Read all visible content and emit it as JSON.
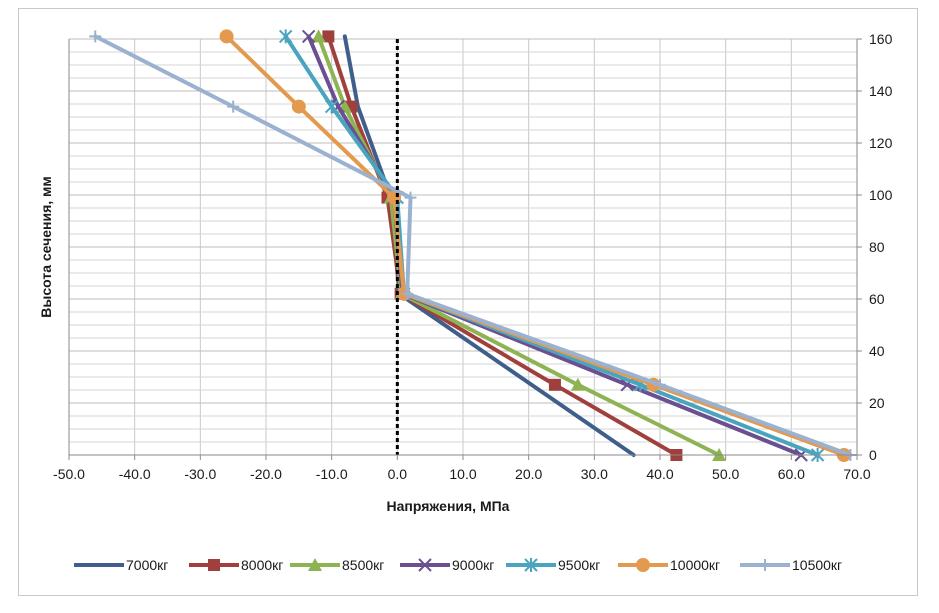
{
  "chart_data": {
    "type": "line",
    "xlabel": "Напряжения, МПа",
    "ylabel": "Высота сечения, мм",
    "xlim": [
      -50,
      70
    ],
    "ylim": [
      0,
      160
    ],
    "x_ticks": [
      "-50.0",
      "-40.0",
      "-30.0",
      "-20.0",
      "-10.0",
      "0.0",
      "10.0",
      "20.0",
      "30.0",
      "40.0",
      "50.0",
      "60.0",
      "70.0"
    ],
    "y_ticks": [
      "0",
      "20",
      "40",
      "60",
      "80",
      "100",
      "120",
      "140",
      "160"
    ],
    "y_axis_position": "right",
    "grid": true,
    "zero_line": "dotted-black",
    "legend_position": "bottom",
    "series": [
      {
        "name": "7000кг",
        "color": "#3f5f8a",
        "marker": "none",
        "x": [
          -8,
          -6,
          -1,
          0.3,
          36
        ],
        "y": [
          161,
          134,
          99,
          62,
          0
        ]
      },
      {
        "name": "8000кг",
        "color": "#a0403c",
        "marker": "square",
        "x": [
          -10.5,
          -7,
          -1.5,
          0.5,
          24,
          42.5
        ],
        "y": [
          161,
          134,
          99,
          62,
          27,
          0
        ]
      },
      {
        "name": "8500кг",
        "color": "#8db353",
        "marker": "triangle",
        "x": [
          -12,
          -8,
          -1,
          0.6,
          27.5,
          49
        ],
        "y": [
          161,
          134,
          99,
          62,
          27,
          0
        ]
      },
      {
        "name": "9000кг",
        "color": "#6a5090",
        "marker": "x",
        "x": [
          -13.5,
          -9,
          -0.5,
          0.8,
          35,
          61.5
        ],
        "y": [
          161,
          134,
          99,
          62,
          27,
          0
        ]
      },
      {
        "name": "9500кг",
        "color": "#4aa4bf",
        "marker": "star",
        "x": [
          -17,
          -10,
          0,
          1,
          37,
          64
        ],
        "y": [
          161,
          134,
          99,
          62,
          27,
          0
        ]
      },
      {
        "name": "10000кг",
        "color": "#e39a4f",
        "marker": "circle",
        "x": [
          -26,
          -15,
          -0.5,
          1,
          39,
          68
        ],
        "y": [
          161,
          134,
          99,
          62,
          27,
          0
        ]
      },
      {
        "name": "10500кг",
        "color": "#9bb1d0",
        "marker": "plus",
        "x": [
          -46,
          -25,
          2,
          1.5,
          40,
          69
        ],
        "y": [
          161,
          134,
          99,
          62,
          27,
          0
        ]
      }
    ]
  }
}
